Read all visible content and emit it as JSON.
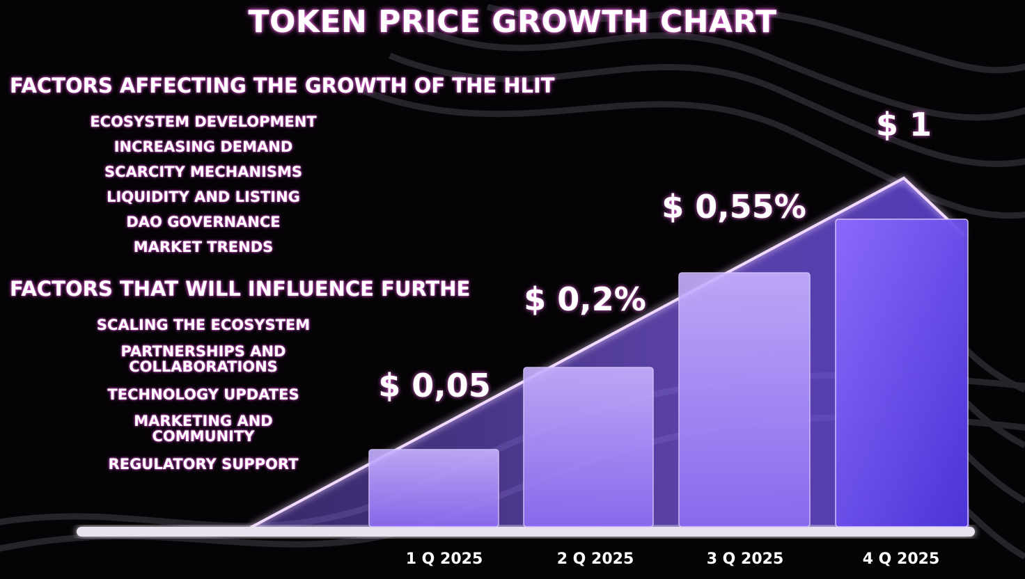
{
  "title": "TOKEN PRICE GROWTH CHART",
  "factors_growth": {
    "heading": "FACTORS AFFECTING THE GROWTH OF THE HLIT",
    "items": [
      "ECOSYSTEM DEVELOPMENT",
      "INCREASING DEMAND",
      "SCARCITY MECHANISMS",
      "LIQUIDITY AND LISTING",
      "DAO GOVERNANCE",
      "MARKET TRENDS"
    ]
  },
  "factors_future": {
    "heading": "FACTORS THAT WILL INFLUENCE FURTHE",
    "items": [
      "SCALING THE ECOSYSTEM",
      "PARTNERSHIPS AND\nCOLLABORATIONS",
      "TECHNOLOGY UPDATES",
      "MARKETING AND\nCOMMUNITY",
      "REGULATORY SUPPORT"
    ]
  },
  "colors": {
    "background": "#050306",
    "bar_light": "#b79bff",
    "bar_dark": "#5a3de0",
    "glow": "#ff6fe6"
  },
  "chart_data": {
    "type": "bar",
    "categories": [
      "1 Q 2025",
      "2  Q 2025",
      "3 Q 2025",
      "4 Q 2025"
    ],
    "values": [
      0.05,
      0.2,
      0.55,
      1
    ],
    "data_labels": [
      "$ 0,05",
      "$ 0,2%",
      "$ 0,55%",
      "$ 1"
    ],
    "ylim": [
      0,
      1
    ],
    "grid": false,
    "legend": "none"
  }
}
